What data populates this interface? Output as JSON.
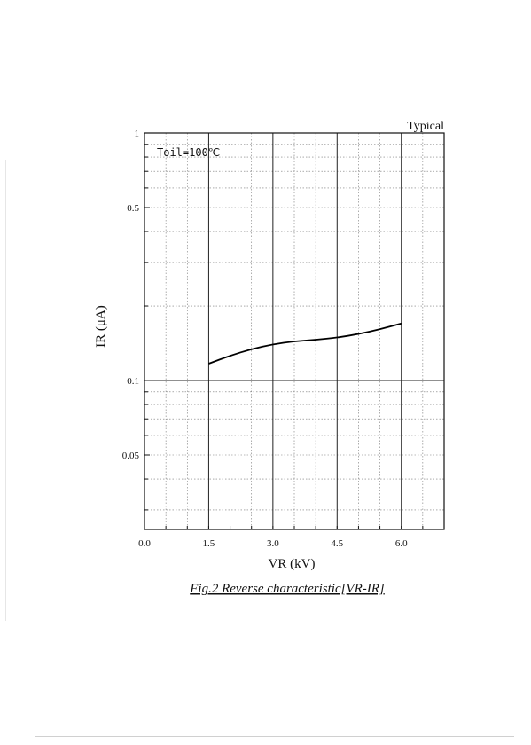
{
  "chart_data": {
    "type": "line",
    "corner_label": "Typical",
    "annotation": "Toil=100℃",
    "xlabel": "VR (kV)",
    "ylabel": "IR (μA)",
    "caption": "Fig.2  Reverse characteristic[VR-IR]",
    "xlim": [
      0,
      7
    ],
    "ylim": [
      0.025,
      1
    ],
    "y_scale": "log",
    "grid": true,
    "x_ticks": [
      {
        "value": 0,
        "label": "0.0"
      },
      {
        "value": 1.5,
        "label": "1.5"
      },
      {
        "value": 3,
        "label": "3.0"
      },
      {
        "value": 4.5,
        "label": "4.5"
      },
      {
        "value": 6,
        "label": "6.0"
      }
    ],
    "y_ticks": [
      {
        "value": 1,
        "label": "1"
      },
      {
        "value": 0.5,
        "label": "0.5"
      },
      {
        "value": 0.1,
        "label": "0.1"
      },
      {
        "value": 0.05,
        "label": "0.05"
      }
    ],
    "series": [
      {
        "x": [
          1.5,
          2.0,
          2.5,
          3.0,
          3.5,
          4.0,
          4.5,
          5.0,
          5.5,
          6.0
        ],
        "y": [
          0.117,
          0.126,
          0.134,
          0.14,
          0.144,
          0.146,
          0.149,
          0.154,
          0.161,
          0.17
        ]
      }
    ]
  }
}
